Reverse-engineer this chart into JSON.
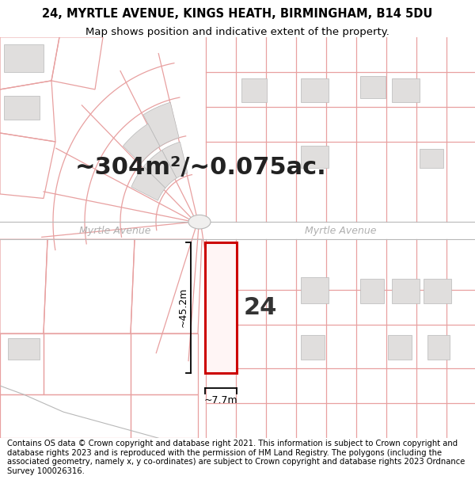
{
  "title_line1": "24, MYRTLE AVENUE, KINGS HEATH, BIRMINGHAM, B14 5DU",
  "title_line2": "Map shows position and indicative extent of the property.",
  "footer_text": "Contains OS data © Crown copyright and database right 2021. This information is subject to Crown copyright and database rights 2023 and is reproduced with the permission of HM Land Registry. The polygons (including the associated geometry, namely x, y co-ordinates) are subject to Crown copyright and database rights 2023 Ordnance Survey 100026316.",
  "area_text": "~304m²/~0.075ac.",
  "street_label_left": "Myrtle Avenue",
  "street_label_right": "Myrtle Avenue",
  "number_label": "24",
  "dim_width": "~7.7m",
  "dim_height": "~45.2m",
  "bg_color": "#ffffff",
  "map_bg": "#ffffff",
  "plot_outline_color": "#cc0000",
  "pink_line_color": "#e8a0a0",
  "grey_line_color": "#b8b8b8",
  "building_fill_pink": "#f0e8e8",
  "building_fill_grey": "#e0dedd",
  "title_fontsize": 10.5,
  "subtitle_fontsize": 9.5,
  "footer_fontsize": 7.2,
  "area_fontsize": 22,
  "street_fontsize": 9,
  "number_fontsize": 22,
  "dim_fontsize": 9
}
